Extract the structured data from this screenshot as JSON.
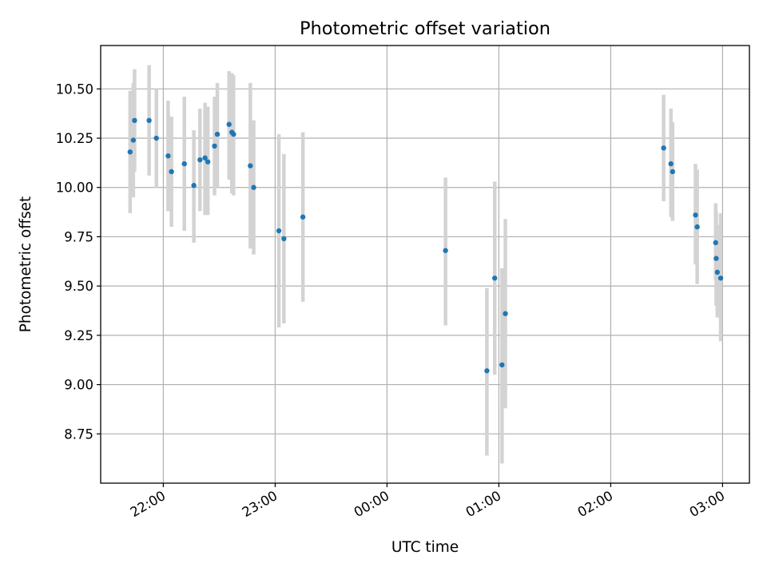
{
  "chart_data": {
    "type": "scatter",
    "title": "Photometric offset variation",
    "xlabel": "UTC time",
    "ylabel": "Photometric offset",
    "x_unit": "hours since 00:00 UTC",
    "xlim": [
      -2.56,
      3.24
    ],
    "ylim": [
      8.5,
      10.72
    ],
    "grid": true,
    "xticks": [
      {
        "value": -2.0,
        "label": "22:00"
      },
      {
        "value": -1.0,
        "label": "23:00"
      },
      {
        "value": 0.0,
        "label": "00:00"
      },
      {
        "value": 1.0,
        "label": "01:00"
      },
      {
        "value": 2.0,
        "label": "02:00"
      },
      {
        "value": 3.0,
        "label": "03:00"
      }
    ],
    "yticks": [
      {
        "value": 8.75,
        "label": "8.75"
      },
      {
        "value": 9.0,
        "label": "9.00"
      },
      {
        "value": 9.25,
        "label": "9.25"
      },
      {
        "value": 9.5,
        "label": "9.50"
      },
      {
        "value": 9.75,
        "label": "9.75"
      },
      {
        "value": 10.0,
        "label": "10.00"
      },
      {
        "value": 10.25,
        "label": "10.25"
      },
      {
        "value": 10.5,
        "label": "10.50"
      }
    ],
    "colors": {
      "point": "#1f77b4",
      "errorbar": "#d3d3d3",
      "grid": "#b0b0b0",
      "frame": "#000000"
    },
    "series": [
      {
        "name": "offset",
        "points": [
          {
            "x": -2.297,
            "y": 10.18,
            "ylo": 9.87,
            "yhi": 10.49
          },
          {
            "x": -2.268,
            "y": 10.24,
            "ylo": 9.95,
            "yhi": 10.53
          },
          {
            "x": -2.257,
            "y": 10.34,
            "ylo": 10.08,
            "yhi": 10.6
          },
          {
            "x": -2.127,
            "y": 10.34,
            "ylo": 10.06,
            "yhi": 10.62
          },
          {
            "x": -2.062,
            "y": 10.25,
            "ylo": 10.0,
            "yhi": 10.5
          },
          {
            "x": -1.957,
            "y": 10.16,
            "ylo": 9.88,
            "yhi": 10.44
          },
          {
            "x": -1.927,
            "y": 10.08,
            "ylo": 9.8,
            "yhi": 10.36
          },
          {
            "x": -1.812,
            "y": 10.12,
            "ylo": 9.78,
            "yhi": 10.46
          },
          {
            "x": -1.727,
            "y": 10.01,
            "ylo": 9.72,
            "yhi": 10.29
          },
          {
            "x": -1.672,
            "y": 10.14,
            "ylo": 9.88,
            "yhi": 10.4
          },
          {
            "x": -1.627,
            "y": 10.15,
            "ylo": 9.86,
            "yhi": 10.43
          },
          {
            "x": -1.602,
            "y": 10.13,
            "ylo": 9.86,
            "yhi": 10.41
          },
          {
            "x": -1.542,
            "y": 10.21,
            "ylo": 9.96,
            "yhi": 10.46
          },
          {
            "x": -1.517,
            "y": 10.27,
            "ylo": 10.0,
            "yhi": 10.53
          },
          {
            "x": -1.412,
            "y": 10.32,
            "ylo": 10.04,
            "yhi": 10.59
          },
          {
            "x": -1.387,
            "y": 10.28,
            "ylo": 9.97,
            "yhi": 10.58
          },
          {
            "x": -1.372,
            "y": 10.27,
            "ylo": 9.96,
            "yhi": 10.57
          },
          {
            "x": -1.222,
            "y": 10.11,
            "ylo": 9.69,
            "yhi": 10.53
          },
          {
            "x": -1.192,
            "y": 10.0,
            "ylo": 9.66,
            "yhi": 10.34
          },
          {
            "x": -0.967,
            "y": 9.78,
            "ylo": 9.29,
            "yhi": 10.27
          },
          {
            "x": -0.922,
            "y": 9.74,
            "ylo": 9.31,
            "yhi": 10.17
          },
          {
            "x": -0.752,
            "y": 9.85,
            "ylo": 9.42,
            "yhi": 10.28
          },
          {
            "x": 0.523,
            "y": 9.68,
            "ylo": 9.3,
            "yhi": 10.05
          },
          {
            "x": 0.893,
            "y": 9.07,
            "ylo": 8.64,
            "yhi": 9.49
          },
          {
            "x": 0.963,
            "y": 9.54,
            "ylo": 9.05,
            "yhi": 10.03
          },
          {
            "x": 1.028,
            "y": 9.1,
            "ylo": 8.6,
            "yhi": 9.59
          },
          {
            "x": 1.058,
            "y": 9.36,
            "ylo": 8.88,
            "yhi": 9.84
          },
          {
            "x": 2.473,
            "y": 10.2,
            "ylo": 9.93,
            "yhi": 10.47
          },
          {
            "x": 2.538,
            "y": 10.12,
            "ylo": 9.85,
            "yhi": 10.4
          },
          {
            "x": 2.553,
            "y": 10.08,
            "ylo": 9.83,
            "yhi": 10.33
          },
          {
            "x": 2.758,
            "y": 9.86,
            "ylo": 9.61,
            "yhi": 10.12
          },
          {
            "x": 2.773,
            "y": 9.8,
            "ylo": 9.51,
            "yhi": 10.09
          },
          {
            "x": 2.938,
            "y": 9.72,
            "ylo": 9.53,
            "yhi": 9.92
          },
          {
            "x": 2.943,
            "y": 9.64,
            "ylo": 9.4,
            "yhi": 9.88
          },
          {
            "x": 2.953,
            "y": 9.57,
            "ylo": 9.34,
            "yhi": 9.81
          },
          {
            "x": 2.983,
            "y": 9.54,
            "ylo": 9.22,
            "yhi": 9.87
          }
        ]
      }
    ]
  }
}
